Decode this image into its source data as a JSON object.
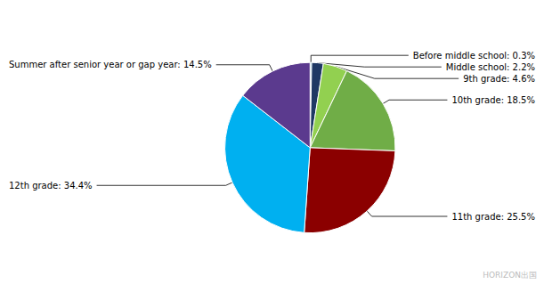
{
  "chart_data": {
    "type": "pie",
    "categories": [
      "Before middle school",
      "Middle school",
      "9th grade",
      "10th grade",
      "11th grade",
      "12th grade",
      "Summer after senior year or gap year"
    ],
    "values": [
      0.3,
      2.2,
      4.6,
      18.5,
      25.5,
      34.4,
      14.5
    ],
    "value_labels": [
      "Before middle school: 0.3%",
      "Middle school: 2.2%",
      "9th grade: 4.6%",
      "10th grade: 18.5%",
      "11th grade: 25.5%",
      "12th grade: 34.4%",
      "Summer after senior year or gap year: 14.5%"
    ],
    "colors": [
      "#4BACC6",
      "#1F3864",
      "#92D050",
      "#70AD47",
      "#8B0000",
      "#00B0F0",
      "#5B3A8E"
    ],
    "data_labels": true,
    "legend": false,
    "annotations": [
      "HORIZON出国"
    ]
  }
}
